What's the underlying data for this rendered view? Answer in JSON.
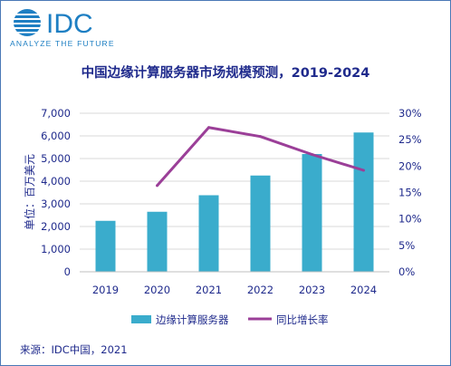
{
  "logo": {
    "brand": "IDC",
    "tagline": "ANALYZE THE FUTURE"
  },
  "chart_data": {
    "type": "bar",
    "title": "中国边缘计算服务器市场规模预测，2019-2024",
    "ylabel": "单位：百万美元",
    "categories": [
      "2019",
      "2020",
      "2021",
      "2022",
      "2023",
      "2024"
    ],
    "y_ticks": [
      "0",
      "1,000",
      "2,000",
      "3,000",
      "4,000",
      "5,000",
      "6,000",
      "7,000"
    ],
    "y2_ticks": [
      "0%",
      "5%",
      "10%",
      "15%",
      "20%",
      "25%",
      "30%"
    ],
    "ylim": [
      0,
      7000
    ],
    "y2lim": [
      0,
      30
    ],
    "series": [
      {
        "name": "边缘计算服务器",
        "type": "bar",
        "axis": "left",
        "values": [
          2250,
          2650,
          3380,
          4250,
          5200,
          6150
        ]
      },
      {
        "name": "同比增长率",
        "type": "line",
        "axis": "right",
        "values": [
          null,
          16.3,
          27.3,
          25.6,
          22.2,
          19.2
        ]
      }
    ],
    "legend_placement": "bottom",
    "grid": true,
    "colors": {
      "bar": "#3aaccc",
      "line": "#9b3f98",
      "text": "#1f2a8c",
      "grid": "#d9d9d9"
    }
  },
  "source": "来源：IDC中国，2021"
}
